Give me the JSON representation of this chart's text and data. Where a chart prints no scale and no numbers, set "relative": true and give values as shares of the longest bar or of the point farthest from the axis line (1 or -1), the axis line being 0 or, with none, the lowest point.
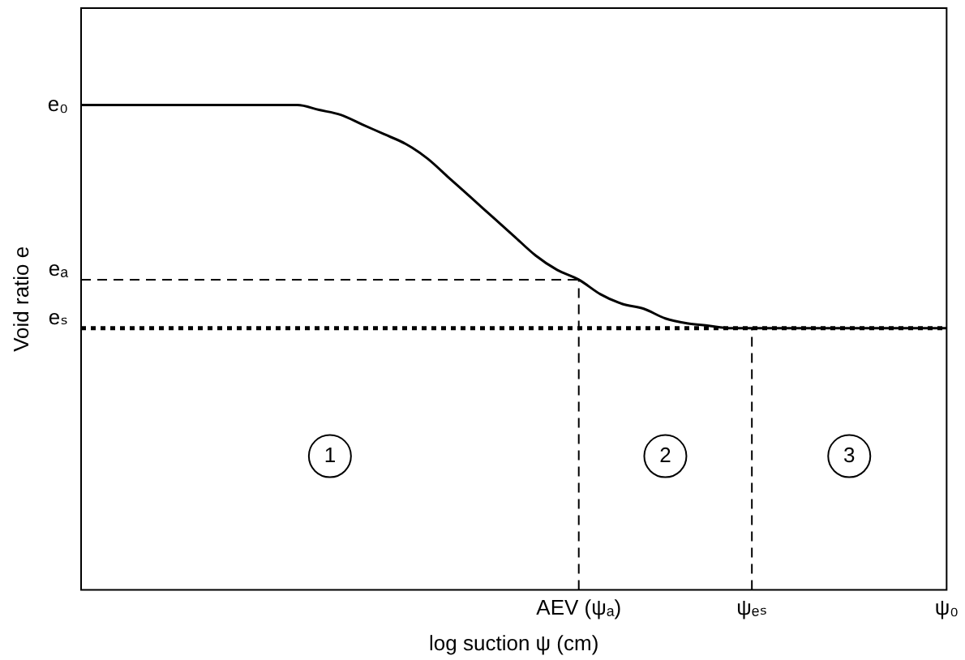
{
  "chart_data": {
    "type": "line",
    "relative": true,
    "xlabel": "log suction ψ (cm)",
    "ylabel": "Void ratio e",
    "categories": [
      null,
      null,
      null,
      null,
      null,
      null,
      null,
      null,
      null,
      null,
      null,
      null,
      null,
      null,
      null,
      null,
      null,
      null,
      null,
      null,
      null,
      null,
      null,
      "AEV (ψₐ)",
      null,
      null,
      null,
      null,
      null,
      null,
      null,
      "ψₑₛ",
      null,
      null,
      null,
      null,
      null,
      null,
      null,
      null,
      "ψ₀"
    ],
    "series": [
      {
        "color": "#000000",
        "values": [
          1,
          1,
          1,
          1,
          1,
          1,
          1,
          1,
          1,
          1,
          1,
          0.99,
          0.98,
          0.96,
          0.94,
          0.92,
          0.89,
          0.85,
          0.81,
          0.77,
          0.73,
          0.69,
          0.66,
          0.64,
          0.61,
          0.59,
          0.58,
          0.56,
          0.55,
          0.545,
          0.54,
          0.54,
          0.54,
          0.54,
          0.54,
          0.54,
          0.54,
          0.54,
          0.54,
          0.54,
          0.54
        ]
      }
    ],
    "ref_lines": [
      {
        "axis": "y",
        "value": 0.64,
        "label": "eₐ",
        "line_style": "dashed"
      },
      {
        "axis": "y",
        "value": 0.54,
        "label": "eₛ",
        "line_style": "dotted"
      },
      {
        "axis": "x",
        "value": "AEV (ψₐ)",
        "line_style": "dashed"
      },
      {
        "axis": "x",
        "value": "ψₑₛ",
        "line_style": "dashed"
      }
    ],
    "annotations": [
      "e₀",
      "1",
      "2",
      "3"
    ],
    "marker": "none",
    "line_style": "solid",
    "grid": false,
    "legend": false
  }
}
